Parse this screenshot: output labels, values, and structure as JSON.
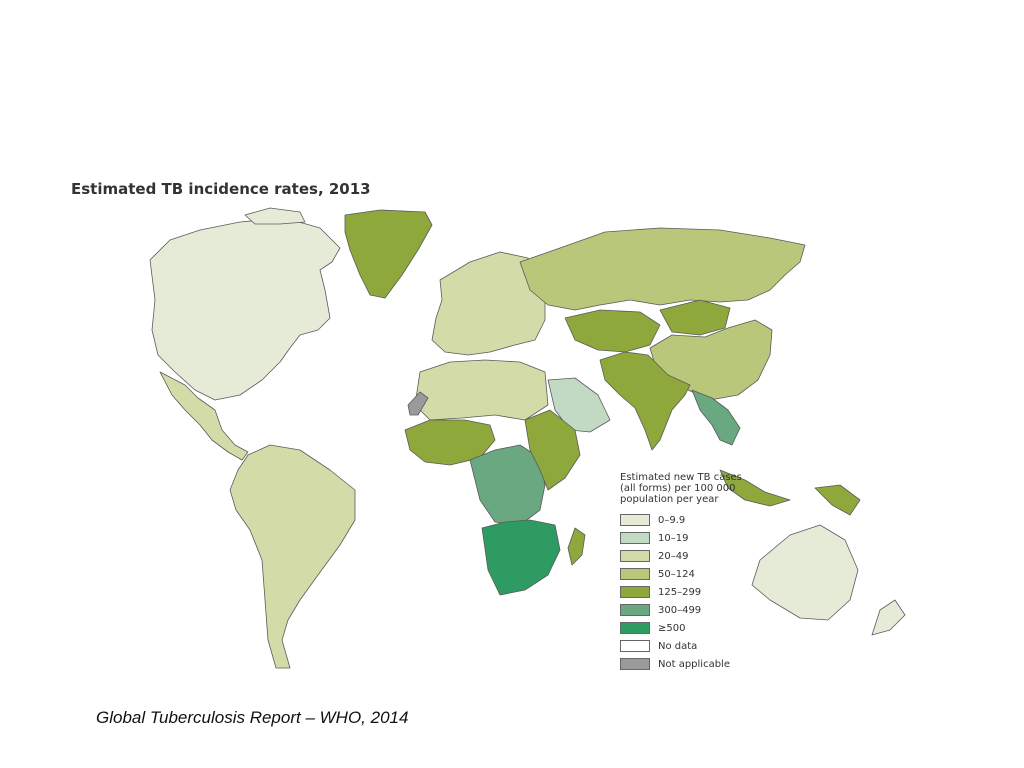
{
  "map": {
    "title": "Estimated TB incidence rates, 2013",
    "legend": {
      "title": "Estimated new TB cases (all forms) per 100 000 population per year",
      "items": [
        {
          "label": "0–9.9",
          "color": "#e6ebd7"
        },
        {
          "label": "10–19",
          "color": "#c2dac4"
        },
        {
          "label": "20–49",
          "color": "#d3dca9"
        },
        {
          "label": "50–124",
          "color": "#b9c77a"
        },
        {
          "label": "125–299",
          "color": "#8ea83c"
        },
        {
          "label": "300–499",
          "color": "#6aa882"
        },
        {
          "label": "≥500",
          "color": "#2e9b62"
        },
        {
          "label": "No data",
          "color": "#ffffff"
        },
        {
          "label": "Not applicable",
          "color": "#9a9a9a"
        }
      ]
    },
    "regions": [
      {
        "name": "North America",
        "category": "0–9.9"
      },
      {
        "name": "Greenland",
        "category": "125–299"
      },
      {
        "name": "Mexico",
        "category": "20–49"
      },
      {
        "name": "South America",
        "category": "20–49"
      },
      {
        "name": "Europe",
        "category": "20–49"
      },
      {
        "name": "Russia",
        "category": "50–124"
      },
      {
        "name": "Central Asia",
        "category": "125–299"
      },
      {
        "name": "Mongolia",
        "category": "125–299"
      },
      {
        "name": "China",
        "category": "50–124"
      },
      {
        "name": "South Asia",
        "category": "125–299"
      },
      {
        "name": "Southeast Asia",
        "category": "300–499"
      },
      {
        "name": "Indonesia",
        "category": "125–299"
      },
      {
        "name": "North Africa",
        "category": "20–49"
      },
      {
        "name": "Arabian Peninsula",
        "category": "10–19"
      },
      {
        "name": "West Africa",
        "category": "125–299"
      },
      {
        "name": "Central Africa",
        "category": "300–499"
      },
      {
        "name": "East Africa",
        "category": "125–299"
      },
      {
        "name": "Southern Africa",
        "category": "≥500"
      },
      {
        "name": "Madagascar",
        "category": "125–299"
      },
      {
        "name": "Australia",
        "category": "0–9.9"
      },
      {
        "name": "Western Sahara",
        "category": "Not applicable"
      }
    ]
  },
  "caption": "Global Tuberculosis Report – WHO, 2014"
}
